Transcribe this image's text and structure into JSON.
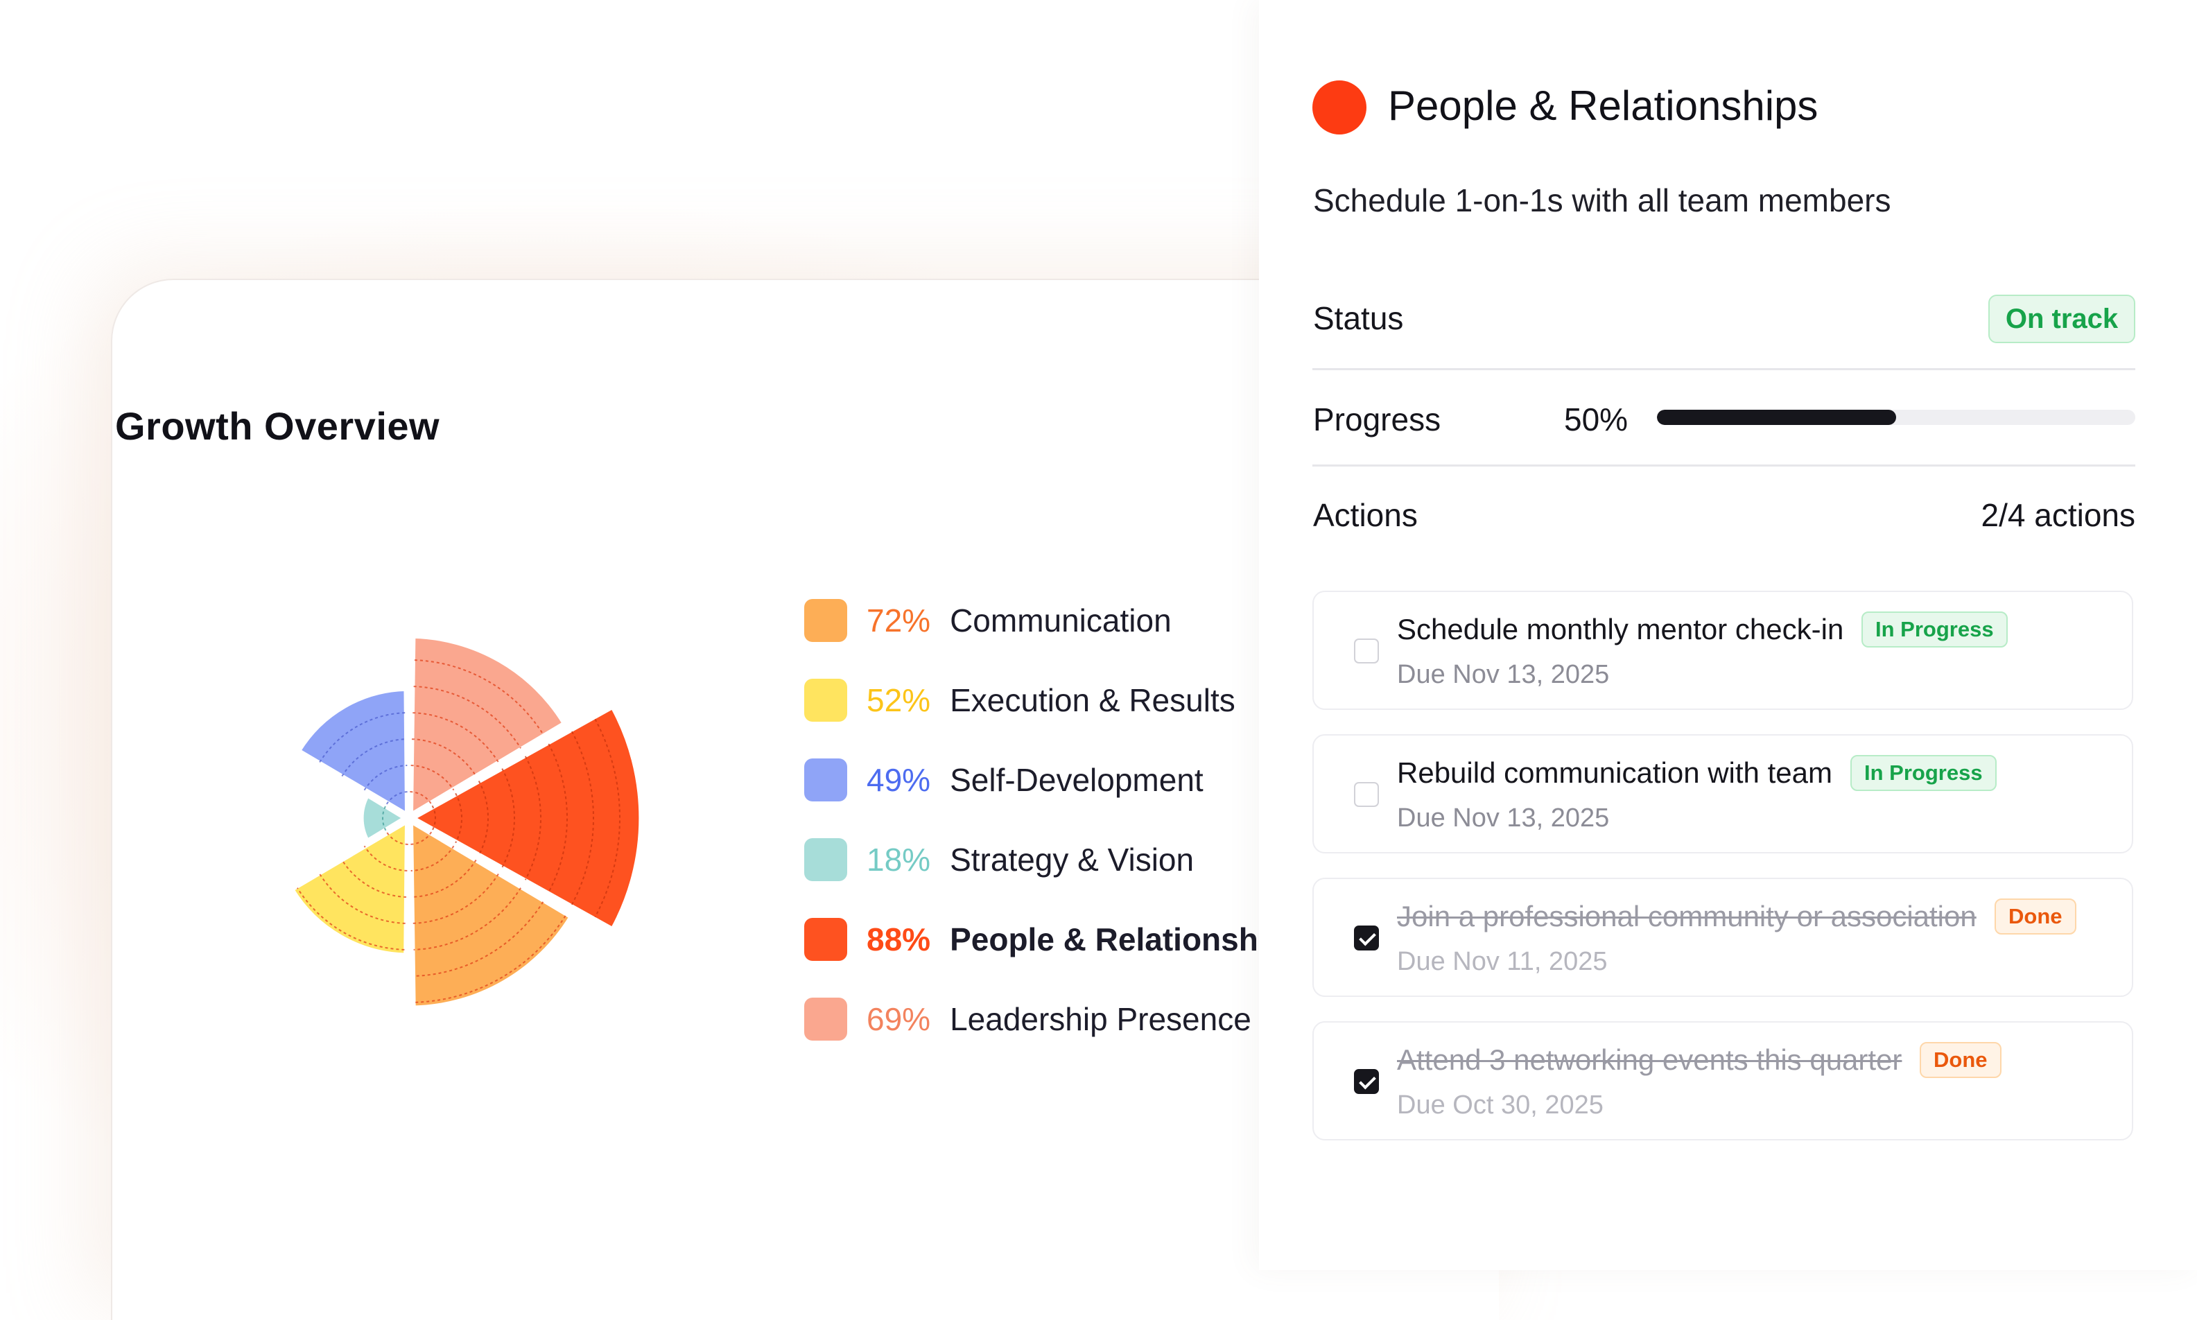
{
  "overview": {
    "title": "Growth Overview",
    "categories": [
      {
        "name": "Communication",
        "percent_label": "72%",
        "value": 72,
        "color": "#fdae56",
        "text_color": "#f7732b"
      },
      {
        "name": "Execution & Results",
        "percent_label": "52%",
        "value": 52,
        "color": "#ffe45f",
        "text_color": "#fcc419"
      },
      {
        "name": "Self-Development",
        "percent_label": "49%",
        "value": 49,
        "color": "#8fa4f7",
        "text_color": "#4d6cf0"
      },
      {
        "name": "Strategy & Vision",
        "percent_label": "18%",
        "value": 18,
        "color": "#a7ddd9",
        "text_color": "#75cbc5"
      },
      {
        "name": "People & Relationships",
        "percent_label": "88%",
        "value": 88,
        "color": "#fe5220",
        "text_color": "#fe4b17"
      },
      {
        "name": "Leadership Presence",
        "percent_label": "69%",
        "value": 69,
        "color": "#faa78f",
        "text_color": "#f3835e"
      }
    ]
  },
  "chart_data": {
    "type": "polar-area",
    "categories": [
      "Communication",
      "Execution & Results",
      "Self-Development",
      "Strategy & Vision",
      "People & Relationships",
      "Leadership Presence"
    ],
    "values": [
      72,
      52,
      49,
      18,
      88,
      69
    ],
    "title": "Growth Overview",
    "ylim": [
      0,
      100
    ],
    "grid": true,
    "legend_placement": "right"
  },
  "detail": {
    "title": "People & Relationships",
    "goal": "Schedule 1-on-1s with all team members",
    "status_label": "Status",
    "status_value": "On track",
    "progress_label": "Progress",
    "progress_text": "50%",
    "progress_value": 0.5,
    "actions_label": "Actions",
    "actions_count": "2/4 actions",
    "actions": [
      {
        "title": "Schedule monthly mentor check-in",
        "badge": "In Progress",
        "due": "Due Nov 13, 2025",
        "done": false
      },
      {
        "title": "Rebuild communication with team",
        "badge": "In Progress",
        "due": "Due Nov 13, 2025",
        "done": false
      },
      {
        "title": "Join a professional community or association",
        "badge": "Done",
        "due": "Due Nov 11, 2025",
        "done": true
      },
      {
        "title": "Attend 3 networking events this quarter",
        "badge": "Done",
        "due": "Due Oct 30, 2025",
        "done": true
      }
    ]
  }
}
